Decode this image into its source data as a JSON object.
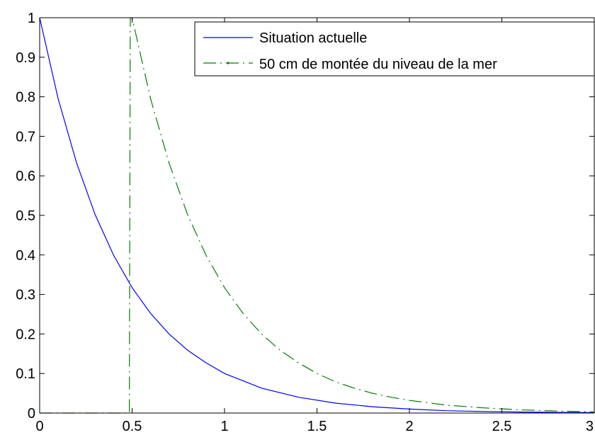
{
  "chart_data": {
    "type": "line",
    "title": "",
    "xlabel": "",
    "ylabel": "",
    "xlim": [
      0,
      3
    ],
    "ylim": [
      0,
      1
    ],
    "grid": false,
    "legend_position": "top-right",
    "x_ticks": [
      {
        "value": 0,
        "label": "0"
      },
      {
        "value": 0.5,
        "label": "0.5"
      },
      {
        "value": 1,
        "label": "1"
      },
      {
        "value": 1.5,
        "label": "1.5"
      },
      {
        "value": 2,
        "label": "2"
      },
      {
        "value": 2.5,
        "label": "2.5"
      },
      {
        "value": 3,
        "label": "3"
      }
    ],
    "y_ticks": [
      {
        "value": 0,
        "label": "0"
      },
      {
        "value": 0.1,
        "label": "0.1"
      },
      {
        "value": 0.2,
        "label": "0.2"
      },
      {
        "value": 0.3,
        "label": "0.3"
      },
      {
        "value": 0.4,
        "label": "0.4"
      },
      {
        "value": 0.5,
        "label": "0.5"
      },
      {
        "value": 0.6,
        "label": "0.6"
      },
      {
        "value": 0.7,
        "label": "0.7"
      },
      {
        "value": 0.8,
        "label": "0.8"
      },
      {
        "value": 0.9,
        "label": "0.9"
      },
      {
        "value": 1,
        "label": "1"
      }
    ],
    "series": [
      {
        "name": "Situation actuelle",
        "color": "#0000ff",
        "line_style": "solid",
        "x": [
          0,
          0.1,
          0.2,
          0.3,
          0.4,
          0.5,
          0.6,
          0.7,
          0.8,
          0.9,
          1.0,
          1.2,
          1.4,
          1.6,
          1.8,
          2.0,
          2.2,
          2.4,
          2.6,
          2.8,
          3.0
        ],
        "y": [
          1.0,
          0.795,
          0.632,
          0.502,
          0.399,
          0.317,
          0.252,
          0.2,
          0.159,
          0.127,
          0.1,
          0.063,
          0.04,
          0.025,
          0.016,
          0.01,
          0.006,
          0.004,
          0.0025,
          0.0016,
          0.001
        ]
      },
      {
        "name": "50 cm de montée du niveau de la mer",
        "color": "#008000",
        "line_style": "dash-dot",
        "x": [
          0,
          0.485,
          0.49,
          0.5,
          0.6,
          0.7,
          0.8,
          0.9,
          1.0,
          1.1,
          1.2,
          1.3,
          1.4,
          1.5,
          1.6,
          1.7,
          1.8,
          1.9,
          2.0,
          2.2,
          2.4,
          2.6,
          2.8,
          3.0
        ],
        "y": [
          0,
          0,
          1.0,
          1.0,
          0.795,
          0.632,
          0.502,
          0.399,
          0.317,
          0.252,
          0.2,
          0.159,
          0.127,
          0.1,
          0.079,
          0.063,
          0.05,
          0.04,
          0.032,
          0.02,
          0.013,
          0.008,
          0.005,
          0.003
        ]
      }
    ]
  }
}
